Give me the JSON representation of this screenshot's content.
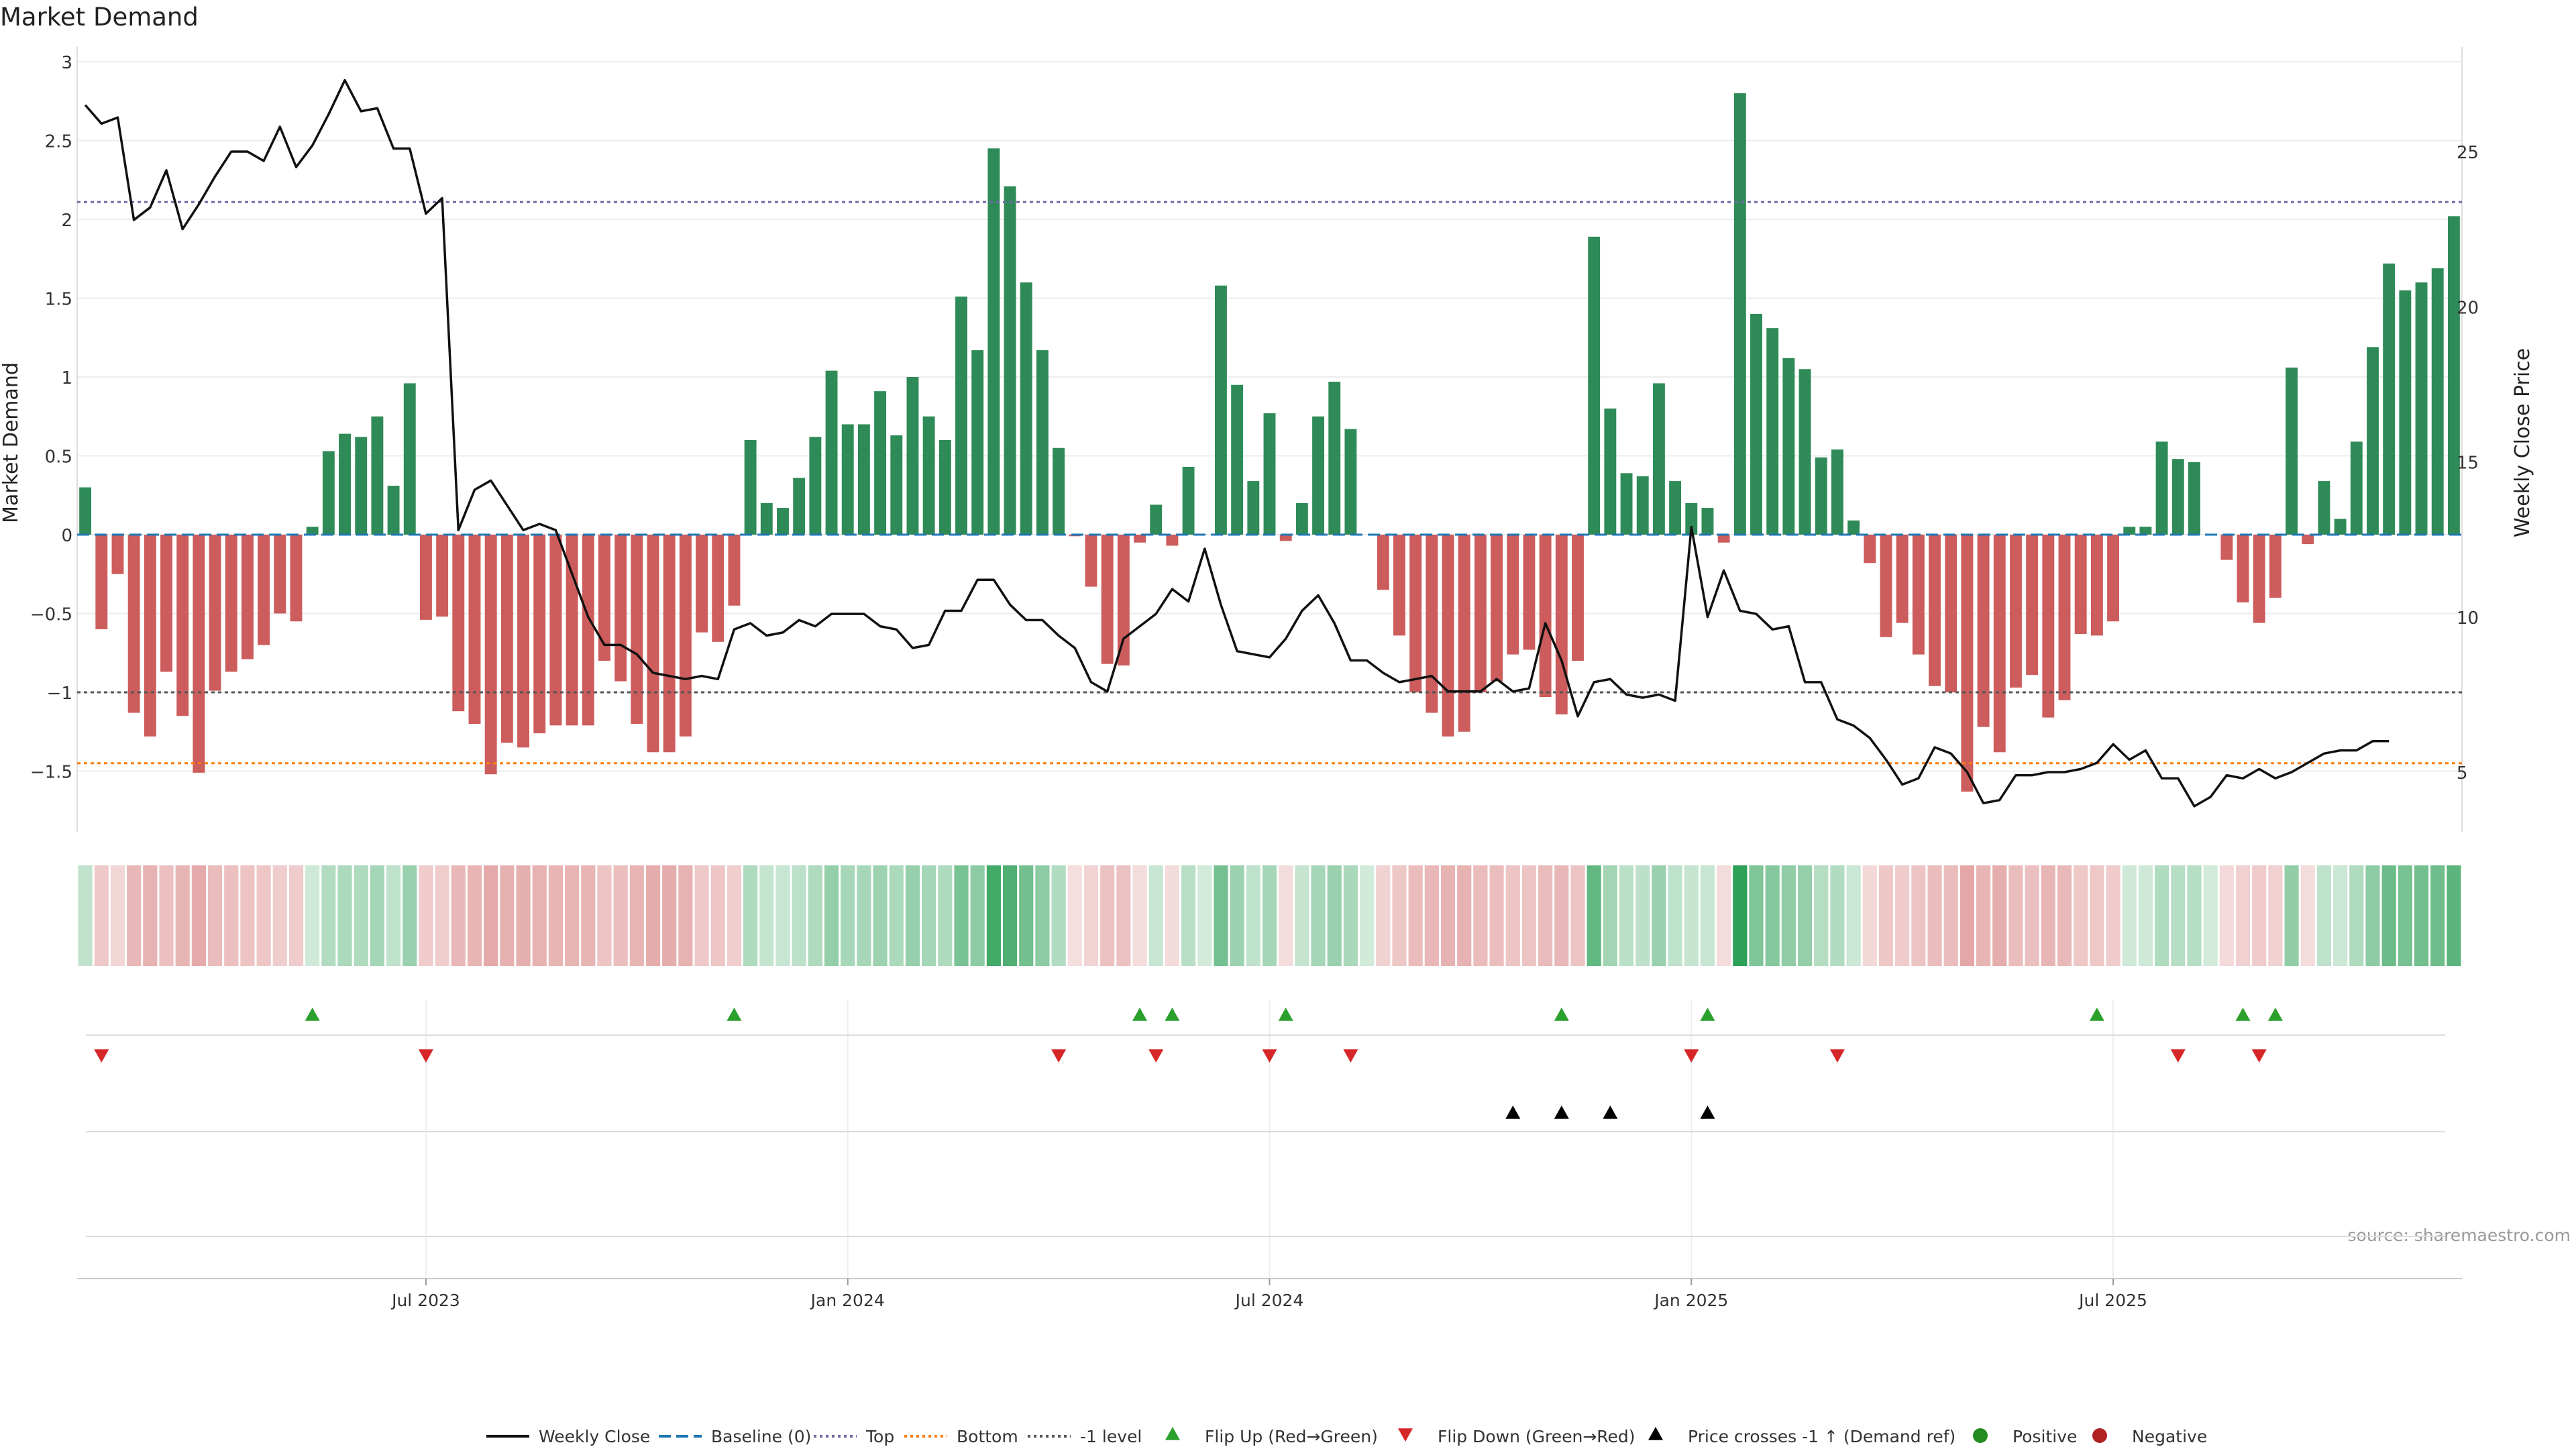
{
  "chart_data": {
    "type": "bar+line",
    "title": "Market Demand",
    "ylabel_left": "Market Demand",
    "ylabel_right": "Weekly Close Price",
    "ylim_left": [
      -1.9,
      3.0
    ],
    "ylim_right": [
      2.5,
      28.0
    ],
    "yticks_left": [
      3,
      2.5,
      2,
      1.5,
      1,
      0.5,
      0,
      -0.5,
      -1,
      -1.5
    ],
    "ytick_labels_left": [
      "3",
      "2.5",
      "2",
      "1.5",
      "1",
      "0.5",
      "0",
      "−0.5",
      "−1",
      "−1.5"
    ],
    "yticks_right": [
      25,
      20,
      15,
      10,
      5
    ],
    "ytick_labels_right": [
      "25",
      "20",
      "15",
      "10",
      "5"
    ],
    "xtick_labels": [
      "Jul 2023",
      "Jan 2024",
      "Jul 2024",
      "Jan 2025",
      "Jul 2025"
    ],
    "xtick_weeks": [
      21.5,
      47.5,
      73.5,
      99.5,
      125.5
    ],
    "reference_lines": {
      "top": 2.11,
      "bottom": -1.45,
      "minus_one": -1.0,
      "baseline": 0
    },
    "source": "source: sharemaestro.com",
    "demand": [
      0.3,
      -0.6,
      -0.25,
      -1.13,
      -1.28,
      -0.87,
      -1.15,
      -1.51,
      -0.99,
      -0.87,
      -0.79,
      -0.7,
      -0.5,
      -0.55,
      0.05,
      0.53,
      0.64,
      0.62,
      0.75,
      0.31,
      0.96,
      -0.54,
      -0.52,
      -1.12,
      -1.2,
      -1.52,
      -1.32,
      -1.35,
      -1.26,
      -1.21,
      -1.21,
      -1.21,
      -0.8,
      -0.93,
      -1.2,
      -1.38,
      -1.38,
      -1.28,
      -0.62,
      -0.68,
      -0.45,
      0.6,
      0.2,
      0.17,
      0.36,
      0.62,
      1.04,
      0.7,
      0.7,
      0.91,
      0.63,
      1.0,
      0.75,
      0.6,
      1.51,
      1.17,
      2.45,
      2.21,
      1.6,
      1.17,
      0.55,
      -0.01,
      -0.33,
      -0.82,
      -0.83,
      -0.05,
      0.19,
      -0.07,
      0.43,
      0.0,
      1.58,
      0.95,
      0.34,
      0.77,
      -0.04,
      0.2,
      0.75,
      0.97,
      0.67,
      0.0,
      -0.35,
      -0.64,
      -1.0,
      -1.13,
      -1.28,
      -1.25,
      -1.0,
      -0.93,
      -0.76,
      -0.73,
      -1.03,
      -1.14,
      -0.8,
      1.89,
      0.8,
      0.39,
      0.37,
      0.96,
      0.34,
      0.2,
      0.17,
      -0.05,
      2.8,
      1.4,
      1.31,
      1.12,
      1.05,
      0.49,
      0.54,
      0.09,
      -0.18,
      -0.65,
      -0.56,
      -0.76,
      -0.96,
      -1.0,
      -1.63,
      -1.22,
      -1.38,
      -0.97,
      -0.89,
      -1.16,
      -1.05,
      -0.63,
      -0.64,
      -0.55,
      0.05,
      0.05,
      0.59,
      0.48,
      0.46,
      0.0,
      -0.16,
      -0.43,
      -0.56,
      -0.4,
      1.06,
      -0.06,
      0.34,
      0.1,
      0.59,
      1.19,
      1.72,
      1.55,
      1.6,
      1.69,
      2.02
    ],
    "weekly_close": [
      26.5,
      25.9,
      26.1,
      22.8,
      23.2,
      24.4,
      22.5,
      23.3,
      24.2,
      25.0,
      25.0,
      24.7,
      25.8,
      24.5,
      25.2,
      26.2,
      27.3,
      26.3,
      26.4,
      25.1,
      25.1,
      23.0,
      23.5,
      12.8,
      14.1,
      14.4,
      13.6,
      12.8,
      13.0,
      12.8,
      11.4,
      10.0,
      9.1,
      9.1,
      8.8,
      8.2,
      8.1,
      8.0,
      8.1,
      8.0,
      9.6,
      9.8,
      9.4,
      9.5,
      9.9,
      9.7,
      10.1,
      10.1,
      10.1,
      9.7,
      9.6,
      9.0,
      9.1,
      10.2,
      10.2,
      11.2,
      11.2,
      10.4,
      9.9,
      9.9,
      9.4,
      9.0,
      7.9,
      7.6,
      9.3,
      9.7,
      10.1,
      10.9,
      10.5,
      12.2,
      10.4,
      8.9,
      8.8,
      8.7,
      9.3,
      10.2,
      10.7,
      9.8,
      8.6,
      8.6,
      8.2,
      7.9,
      8.0,
      8.1,
      7.6,
      7.6,
      7.6,
      8.0,
      7.6,
      7.7,
      9.8,
      8.6,
      6.8,
      7.9,
      8.0,
      7.5,
      7.4,
      7.5,
      7.3,
      12.9,
      10.0,
      11.5,
      10.2,
      10.1,
      9.6,
      9.7,
      7.9,
      7.9,
      6.7,
      6.5,
      6.1,
      5.4,
      4.6,
      4.8,
      5.8,
      5.6,
      5.0,
      4.0,
      4.1,
      4.9,
      4.9,
      5.0,
      5.0,
      5.1,
      5.3,
      5.9,
      5.4,
      5.7,
      4.8,
      4.8,
      3.9,
      4.2,
      4.9,
      4.8,
      5.1,
      4.8,
      5.0,
      5.3,
      5.6,
      5.7,
      5.7,
      6.0,
      6.0
    ],
    "flip_up_weeks": [
      14,
      40,
      65,
      67,
      74,
      91,
      100,
      124,
      133,
      135
    ],
    "flip_down_weeks": [
      1,
      21,
      60,
      66,
      73,
      78,
      99,
      108,
      129,
      134
    ],
    "price_cross_weeks": [
      88,
      91,
      94,
      100
    ],
    "legend": [
      {
        "label": "Weekly Close",
        "kind": "line",
        "color": "#111111",
        "dash": ""
      },
      {
        "label": "Baseline (0)",
        "kind": "line",
        "color": "#1f77b4",
        "dash": "18,8"
      },
      {
        "label": "Top",
        "kind": "line",
        "color": "#6f6aa5",
        "dash": "4,5"
      },
      {
        "label": "Bottom",
        "kind": "line",
        "color": "#ff7f0e",
        "dash": "4,5"
      },
      {
        "label": "-1 level",
        "kind": "line",
        "color": "#555555",
        "dash": "4,5"
      },
      {
        "label": "Flip Up (Red→Green)",
        "kind": "tri-up",
        "color": "#2ca02c"
      },
      {
        "label": "Flip Down (Green→Red)",
        "kind": "tri-down",
        "color": "#d62728"
      },
      {
        "label": "Price crosses -1 ↑ (Demand ref)",
        "kind": "tri-up",
        "color": "#000000"
      },
      {
        "label": "Positive",
        "kind": "dot",
        "color": "#228b22"
      },
      {
        "label": "Negative",
        "kind": "dot",
        "color": "#b22222"
      }
    ],
    "colors": {
      "positive": "#2e8b57",
      "negative": "#cd5c5c",
      "price": "#111111",
      "baseline": "#1f77b4",
      "top": "#6f6aa5",
      "bottom": "#ff7f0e",
      "minus_one": "#555555",
      "flip_up": "#2ca02c",
      "flip_down": "#d62728",
      "cross": "#000000"
    }
  }
}
